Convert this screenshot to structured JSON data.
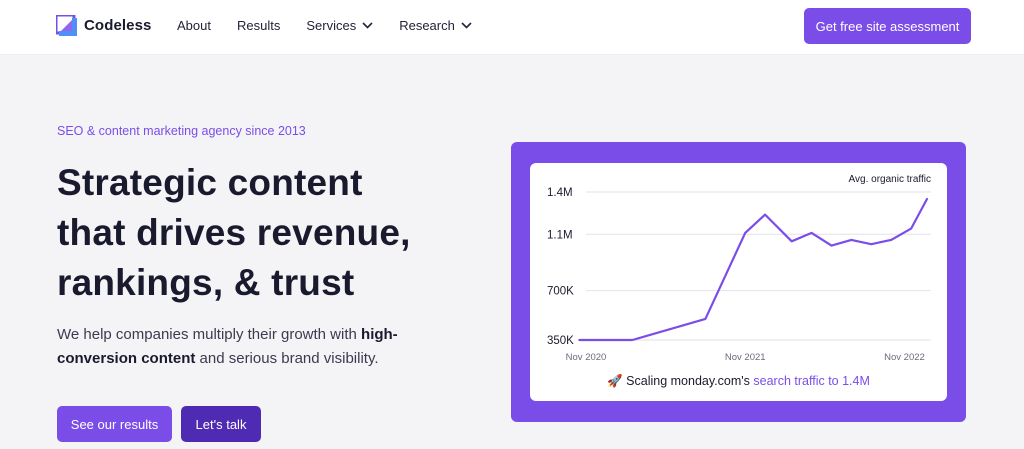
{
  "brand": {
    "name": "Codeless",
    "accent": "#7b4de8",
    "accent_dark": "#4f2bb3"
  },
  "nav": {
    "items": [
      {
        "label": "About",
        "has_dropdown": false
      },
      {
        "label": "Results",
        "has_dropdown": false
      },
      {
        "label": "Services",
        "has_dropdown": true
      },
      {
        "label": "Research",
        "has_dropdown": true
      }
    ],
    "cta_label": "Get free site assessment"
  },
  "hero": {
    "eyebrow": "SEO & content marketing agency since 2013",
    "headline_line1": "Strategic content",
    "headline_line2": "that drives revenue,",
    "headline_line3": "rankings, & trust",
    "sub_part1": "We help companies multiply their growth with ",
    "sub_bold": "high-conversion content",
    "sub_part2": " and serious brand visibility.",
    "btn_results": "See our results",
    "btn_talk": "Let's talk"
  },
  "chart_data": {
    "type": "line",
    "title": "Avg. organic traffic",
    "y_ticks": [
      "1.4M",
      "1.1M",
      "700K",
      "350K"
    ],
    "y_tick_values": [
      1400000,
      1100000,
      700000,
      350000
    ],
    "x_ticks": [
      "Nov 2020",
      "Nov 2021",
      "Nov 2022"
    ],
    "x_tick_positions": [
      0,
      12,
      24
    ],
    "ylim": [
      350000,
      1400000
    ],
    "xlim": [
      0,
      26
    ],
    "grid": true,
    "series": [
      {
        "color": "#7b4de8",
        "points": [
          {
            "x": -0.5,
            "y": 350000
          },
          {
            "x": 3.5,
            "y": 350000
          },
          {
            "x": 9.0,
            "y": 500000
          },
          {
            "x": 12.0,
            "y": 1110000
          },
          {
            "x": 13.5,
            "y": 1240000
          },
          {
            "x": 15.5,
            "y": 1050000
          },
          {
            "x": 17.0,
            "y": 1110000
          },
          {
            "x": 18.5,
            "y": 1020000
          },
          {
            "x": 20.0,
            "y": 1060000
          },
          {
            "x": 21.5,
            "y": 1030000
          },
          {
            "x": 23.0,
            "y": 1060000
          },
          {
            "x": 24.5,
            "y": 1140000
          },
          {
            "x": 25.7,
            "y": 1350000
          }
        ]
      }
    ]
  },
  "caption": {
    "emoji": "🚀",
    "text": "Scaling monday.com's ",
    "highlight": "search traffic to 1.4M"
  }
}
